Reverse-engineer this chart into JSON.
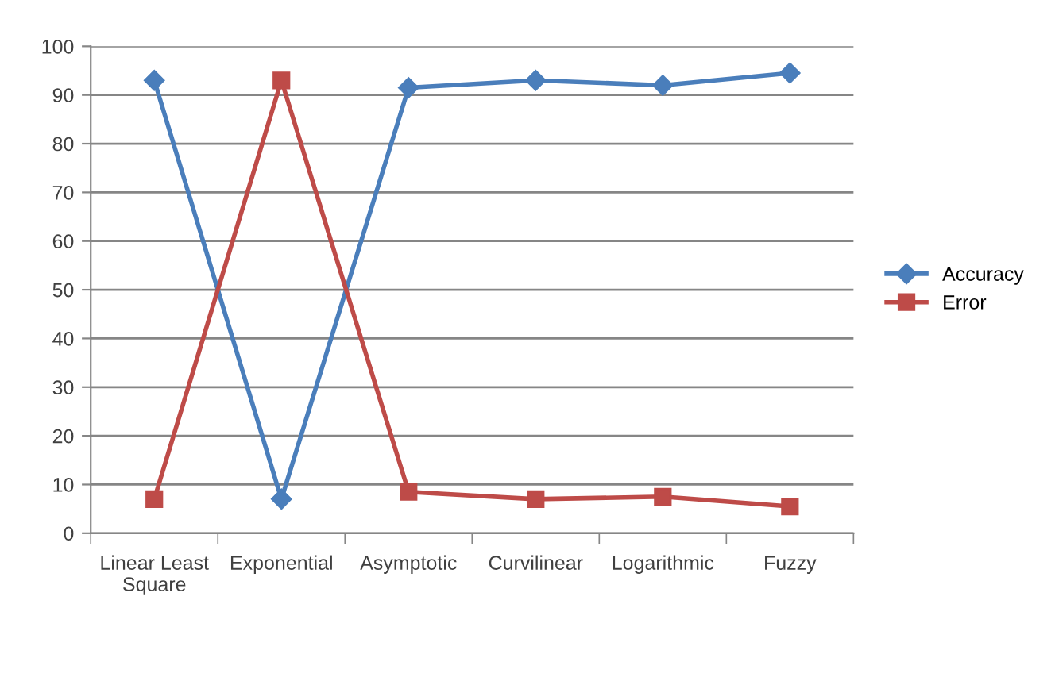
{
  "chart_data": {
    "type": "line",
    "categories": [
      "Linear Least\nSquare",
      "Exponential",
      "Asymptotic",
      "Curvilinear",
      "Logarithmic",
      "Fuzzy"
    ],
    "series": [
      {
        "name": "Accuracy",
        "color": "#4a7ebb",
        "marker": "diamond",
        "values": [
          93,
          7,
          91.5,
          93,
          92,
          94.5
        ]
      },
      {
        "name": "Error",
        "color": "#be4b48",
        "marker": "square",
        "values": [
          7,
          93,
          8.5,
          7,
          7.5,
          5.5
        ]
      }
    ],
    "ylim": [
      0,
      100
    ],
    "yticks": [
      0,
      10,
      20,
      30,
      40,
      50,
      60,
      70,
      80,
      90,
      100
    ],
    "grid": "y",
    "legend": "right"
  }
}
